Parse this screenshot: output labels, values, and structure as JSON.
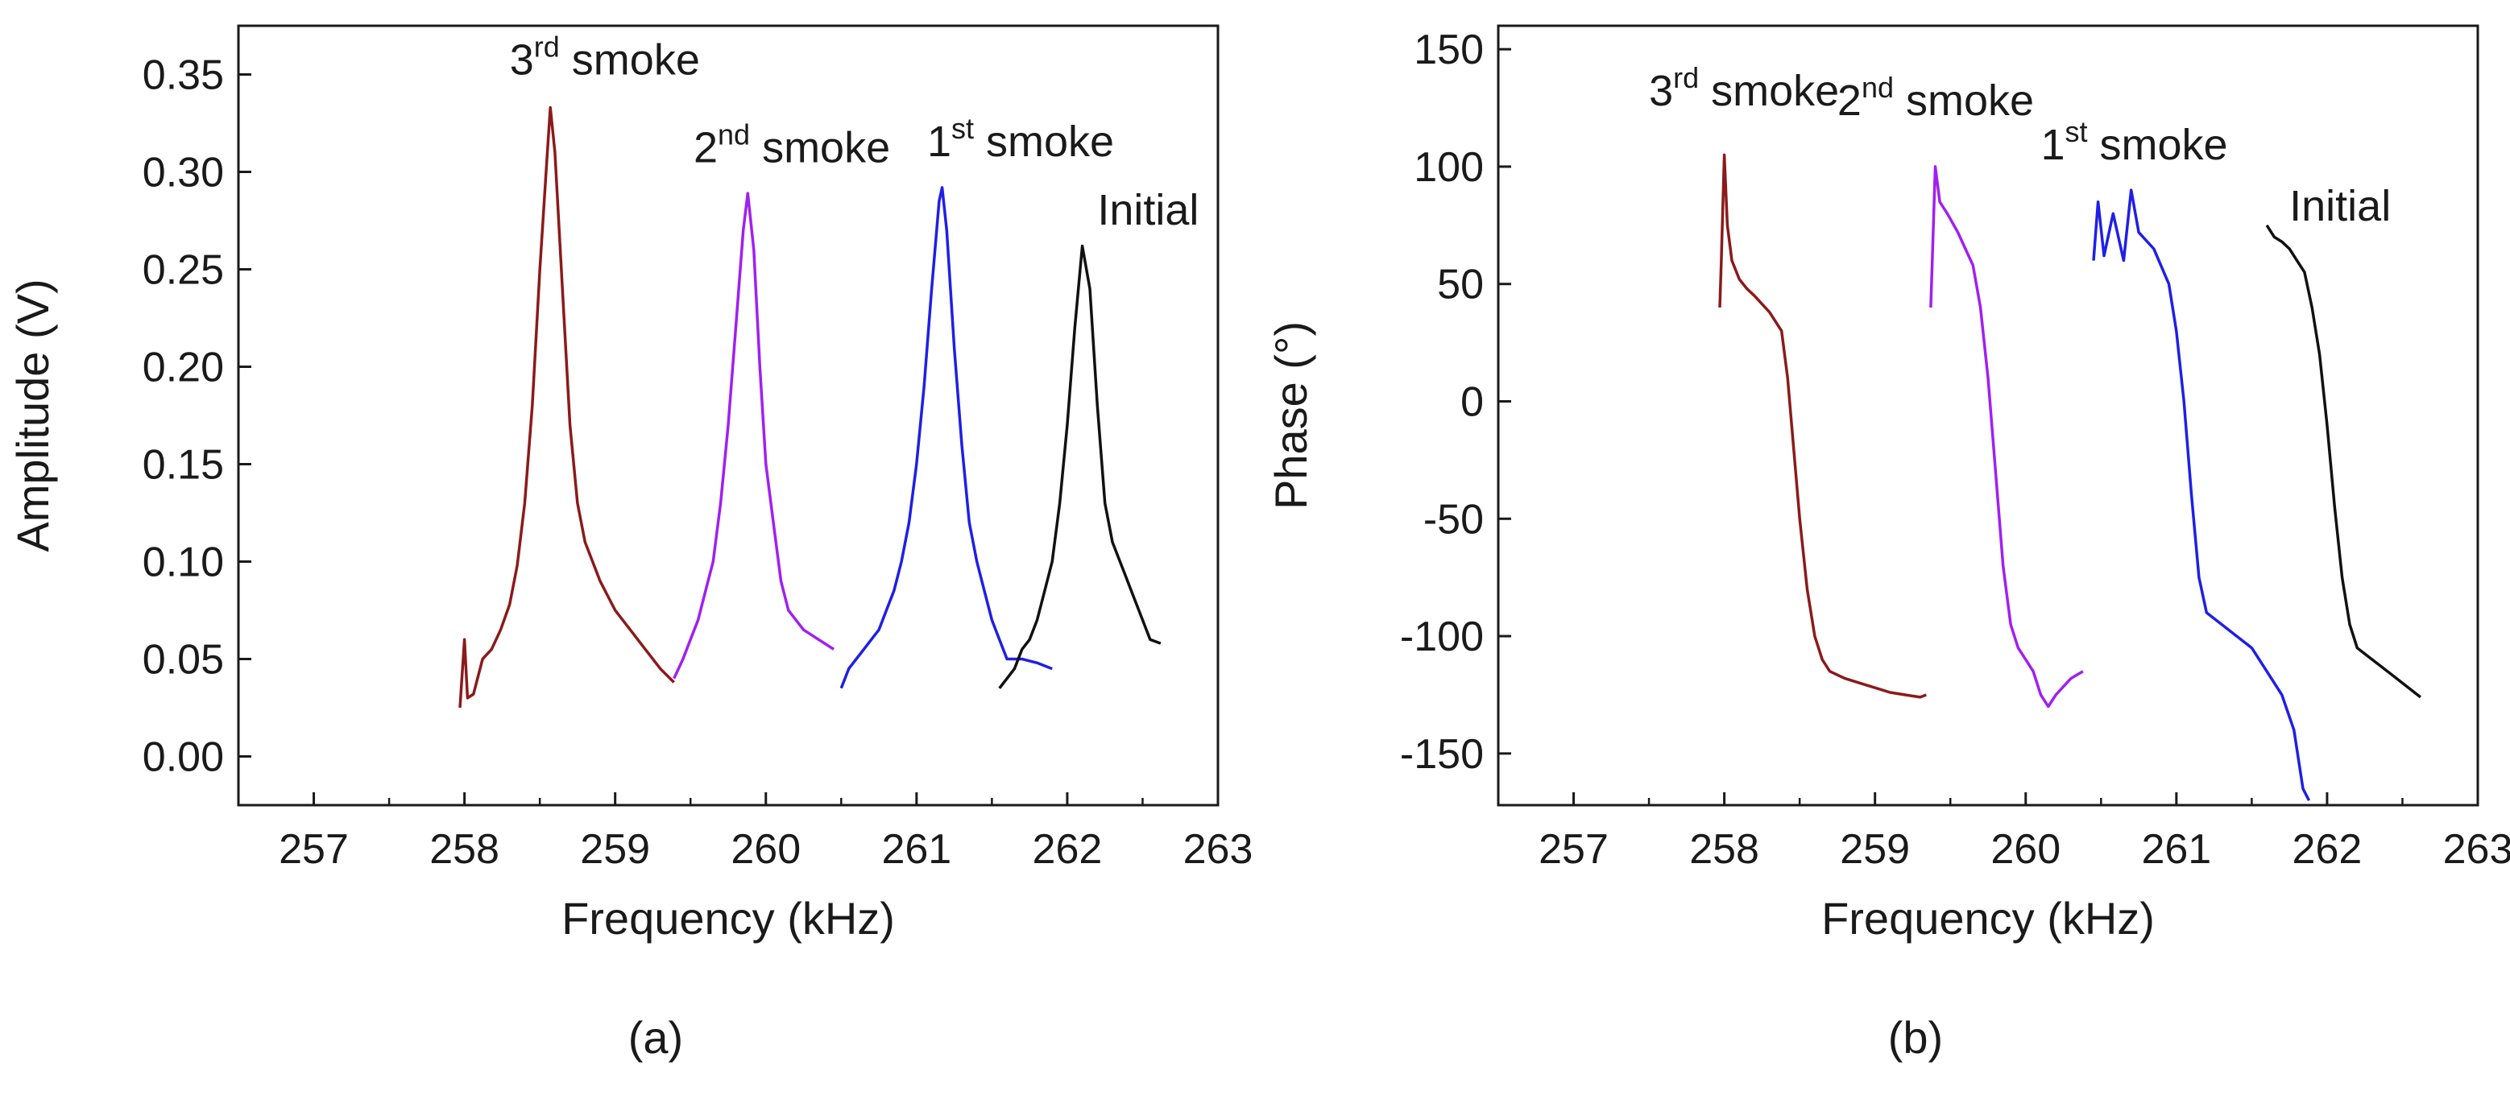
{
  "chart_data": [
    {
      "type": "line",
      "panel_label": "(a)",
      "xlabel": "Frequency (kHz)",
      "ylabel": "Amplitude (V)",
      "xlim": [
        256.5,
        263
      ],
      "ylim": [
        -0.025,
        0.375
      ],
      "xticks": [
        257,
        258,
        259,
        260,
        261,
        262,
        263
      ],
      "yticks": [
        0.0,
        0.05,
        0.1,
        0.15,
        0.2,
        0.25,
        0.3,
        0.35
      ],
      "ytick_labels": [
        "0.00",
        "0.05",
        "0.10",
        "0.15",
        "0.20",
        "0.25",
        "0.30",
        "0.35"
      ],
      "grid": false,
      "series": [
        {
          "name": "3rd smoke",
          "label_base": "3",
          "label_sup": "rd",
          "label_rest": " smoke",
          "color": "#8b1a1a",
          "label_at": [
            258.3,
            0.35
          ],
          "peak_freq": 258.57,
          "peak_value": 0.333,
          "points": [
            [
              257.97,
              0.025
            ],
            [
              258.0,
              0.06
            ],
            [
              258.02,
              0.03
            ],
            [
              258.06,
              0.032
            ],
            [
              258.12,
              0.05
            ],
            [
              258.18,
              0.055
            ],
            [
              258.24,
              0.065
            ],
            [
              258.3,
              0.078
            ],
            [
              258.35,
              0.098
            ],
            [
              258.4,
              0.13
            ],
            [
              258.45,
              0.18
            ],
            [
              258.5,
              0.25
            ],
            [
              258.55,
              0.31
            ],
            [
              258.57,
              0.333
            ],
            [
              258.6,
              0.31
            ],
            [
              258.65,
              0.24
            ],
            [
              258.7,
              0.17
            ],
            [
              258.75,
              0.13
            ],
            [
              258.8,
              0.11
            ],
            [
              258.9,
              0.09
            ],
            [
              259.0,
              0.075
            ],
            [
              259.1,
              0.065
            ],
            [
              259.2,
              0.055
            ],
            [
              259.3,
              0.045
            ],
            [
              259.39,
              0.038
            ]
          ]
        },
        {
          "name": "2nd smoke",
          "label_base": "2",
          "label_sup": "nd",
          "label_rest": " smoke",
          "color": "#a020f0",
          "label_at": [
            259.52,
            0.305
          ],
          "peak_freq": 259.88,
          "peak_value": 0.289,
          "points": [
            [
              259.39,
              0.04
            ],
            [
              259.45,
              0.05
            ],
            [
              259.5,
              0.06
            ],
            [
              259.55,
              0.07
            ],
            [
              259.6,
              0.085
            ],
            [
              259.65,
              0.1
            ],
            [
              259.7,
              0.13
            ],
            [
              259.75,
              0.17
            ],
            [
              259.8,
              0.22
            ],
            [
              259.85,
              0.27
            ],
            [
              259.88,
              0.289
            ],
            [
              259.92,
              0.26
            ],
            [
              259.96,
              0.2
            ],
            [
              260.0,
              0.15
            ],
            [
              260.05,
              0.12
            ],
            [
              260.1,
              0.09
            ],
            [
              260.15,
              0.075
            ],
            [
              260.25,
              0.065
            ],
            [
              260.35,
              0.06
            ],
            [
              260.45,
              0.055
            ]
          ]
        },
        {
          "name": "1st smoke",
          "label_base": "1",
          "label_sup": "st",
          "label_rest": " smoke",
          "color": "#1f1fe6",
          "label_at": [
            261.07,
            0.308
          ],
          "peak_freq": 261.17,
          "peak_value": 0.292,
          "points": [
            [
              260.5,
              0.035
            ],
            [
              260.55,
              0.045
            ],
            [
              260.6,
              0.05
            ],
            [
              260.65,
              0.055
            ],
            [
              260.7,
              0.06
            ],
            [
              260.75,
              0.065
            ],
            [
              260.8,
              0.075
            ],
            [
              260.85,
              0.085
            ],
            [
              260.9,
              0.1
            ],
            [
              260.95,
              0.12
            ],
            [
              261.0,
              0.15
            ],
            [
              261.05,
              0.19
            ],
            [
              261.1,
              0.24
            ],
            [
              261.15,
              0.285
            ],
            [
              261.17,
              0.292
            ],
            [
              261.2,
              0.27
            ],
            [
              261.25,
              0.21
            ],
            [
              261.3,
              0.16
            ],
            [
              261.35,
              0.12
            ],
            [
              261.4,
              0.1
            ],
            [
              261.45,
              0.085
            ],
            [
              261.5,
              0.07
            ],
            [
              261.55,
              0.06
            ],
            [
              261.6,
              0.05
            ],
            [
              261.7,
              0.05
            ],
            [
              261.8,
              0.048
            ],
            [
              261.9,
              0.045
            ]
          ]
        },
        {
          "name": "Initial",
          "label_base": "Initial",
          "label_sup": "",
          "label_rest": "",
          "color": "#111111",
          "label_at": [
            262.2,
            0.273
          ],
          "peak_freq": 262.1,
          "peak_value": 0.262,
          "points": [
            [
              261.55,
              0.035
            ],
            [
              261.6,
              0.04
            ],
            [
              261.65,
              0.045
            ],
            [
              261.7,
              0.055
            ],
            [
              261.75,
              0.06
            ],
            [
              261.8,
              0.07
            ],
            [
              261.85,
              0.085
            ],
            [
              261.9,
              0.1
            ],
            [
              261.95,
              0.13
            ],
            [
              262.0,
              0.17
            ],
            [
              262.05,
              0.22
            ],
            [
              262.1,
              0.262
            ],
            [
              262.15,
              0.24
            ],
            [
              262.2,
              0.18
            ],
            [
              262.25,
              0.13
            ],
            [
              262.3,
              0.11
            ],
            [
              262.35,
              0.1
            ],
            [
              262.4,
              0.09
            ],
            [
              262.45,
              0.08
            ],
            [
              262.5,
              0.07
            ],
            [
              262.55,
              0.06
            ],
            [
              262.62,
              0.058
            ]
          ]
        }
      ]
    },
    {
      "type": "line",
      "panel_label": "(b)",
      "xlabel": "Frequency (kHz)",
      "ylabel": "Phase (°)",
      "xlim": [
        256.5,
        263
      ],
      "ylim": [
        -172,
        160
      ],
      "xticks": [
        257,
        258,
        259,
        260,
        261,
        262,
        263
      ],
      "yticks": [
        -150,
        -100,
        -50,
        0,
        50,
        100,
        150
      ],
      "ytick_labels": [
        "-150",
        "-100",
        "-50",
        "0",
        "50",
        "100",
        "150"
      ],
      "grid": false,
      "series": [
        {
          "name": "3rd smoke",
          "label_base": "3",
          "label_sup": "rd",
          "label_rest": " smoke",
          "color": "#8b1a1a",
          "label_at": [
            257.5,
            126
          ],
          "points": [
            [
              257.97,
              40
            ],
            [
              257.98,
              60
            ],
            [
              258.0,
              105
            ],
            [
              258.02,
              75
            ],
            [
              258.05,
              60
            ],
            [
              258.1,
              52
            ],
            [
              258.15,
              48
            ],
            [
              258.2,
              45
            ],
            [
              258.3,
              38
            ],
            [
              258.38,
              30
            ],
            [
              258.42,
              10
            ],
            [
              258.46,
              -20
            ],
            [
              258.5,
              -50
            ],
            [
              258.55,
              -80
            ],
            [
              258.6,
              -100
            ],
            [
              258.65,
              -110
            ],
            [
              258.7,
              -115
            ],
            [
              258.8,
              -118
            ],
            [
              258.9,
              -120
            ],
            [
              259.0,
              -122
            ],
            [
              259.1,
              -124
            ],
            [
              259.2,
              -125
            ],
            [
              259.3,
              -126
            ],
            [
              259.34,
              -125
            ]
          ]
        },
        {
          "name": "2nd smoke",
          "label_base": "2",
          "label_sup": "nd",
          "label_rest": " smoke",
          "color": "#a020f0",
          "label_at": [
            258.75,
            122
          ],
          "points": [
            [
              259.37,
              40
            ],
            [
              259.38,
              60
            ],
            [
              259.4,
              100
            ],
            [
              259.43,
              85
            ],
            [
              259.48,
              80
            ],
            [
              259.55,
              72
            ],
            [
              259.6,
              65
            ],
            [
              259.65,
              58
            ],
            [
              259.7,
              40
            ],
            [
              259.75,
              10
            ],
            [
              259.8,
              -30
            ],
            [
              259.85,
              -70
            ],
            [
              259.9,
              -95
            ],
            [
              259.95,
              -105
            ],
            [
              260.0,
              -110
            ],
            [
              260.05,
              -115
            ],
            [
              260.1,
              -125
            ],
            [
              260.15,
              -130
            ],
            [
              260.2,
              -125
            ],
            [
              260.3,
              -118
            ],
            [
              260.38,
              -115
            ]
          ]
        },
        {
          "name": "1st smoke",
          "label_base": "1",
          "label_sup": "st",
          "label_rest": " smoke",
          "color": "#1f1fe6",
          "label_at": [
            260.1,
            103
          ],
          "points": [
            [
              260.45,
              60
            ],
            [
              260.48,
              85
            ],
            [
              260.52,
              62
            ],
            [
              260.58,
              80
            ],
            [
              260.65,
              60
            ],
            [
              260.7,
              90
            ],
            [
              260.75,
              72
            ],
            [
              260.85,
              65
            ],
            [
              260.95,
              50
            ],
            [
              261.0,
              30
            ],
            [
              261.05,
              0
            ],
            [
              261.1,
              -40
            ],
            [
              261.15,
              -75
            ],
            [
              261.2,
              -90
            ],
            [
              261.3,
              -95
            ],
            [
              261.4,
              -100
            ],
            [
              261.5,
              -105
            ],
            [
              261.6,
              -115
            ],
            [
              261.7,
              -125
            ],
            [
              261.78,
              -140
            ],
            [
              261.84,
              -165
            ],
            [
              261.88,
              -170
            ]
          ]
        },
        {
          "name": "Initial",
          "label_base": "Initial",
          "label_sup": "",
          "label_rest": "",
          "color": "#111111",
          "label_at": [
            261.75,
            77
          ],
          "points": [
            [
              261.6,
              75
            ],
            [
              261.65,
              70
            ],
            [
              261.7,
              68
            ],
            [
              261.75,
              65
            ],
            [
              261.8,
              60
            ],
            [
              261.85,
              55
            ],
            [
              261.9,
              40
            ],
            [
              261.95,
              20
            ],
            [
              262.0,
              -10
            ],
            [
              262.05,
              -45
            ],
            [
              262.1,
              -75
            ],
            [
              262.15,
              -95
            ],
            [
              262.2,
              -105
            ],
            [
              262.3,
              -110
            ],
            [
              262.4,
              -115
            ],
            [
              262.5,
              -120
            ],
            [
              262.6,
              -125
            ],
            [
              262.62,
              -126
            ]
          ]
        }
      ]
    }
  ]
}
